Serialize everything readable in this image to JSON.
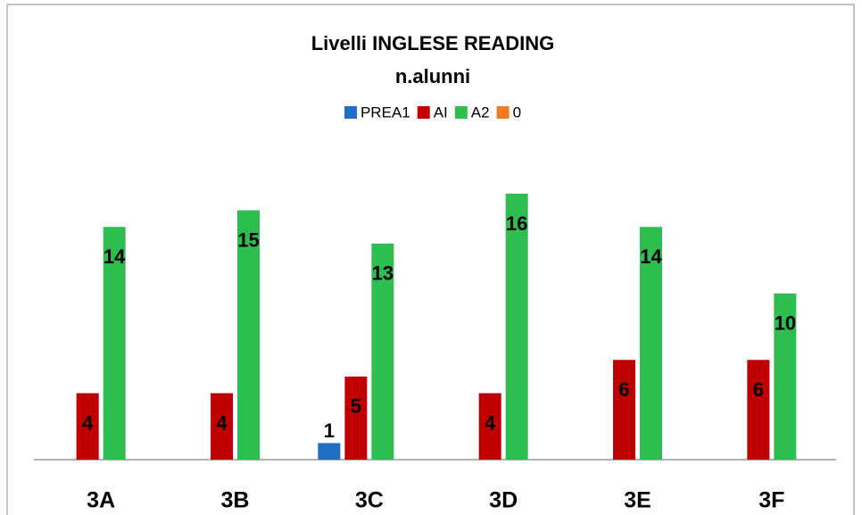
{
  "chart_data": {
    "type": "bar",
    "title": "Livelli INGLESE READING",
    "subtitle": "n.alunni",
    "categories": [
      "3A",
      "3B",
      "3C",
      "3D",
      "3E",
      "3F"
    ],
    "series": [
      {
        "name": "PREA1",
        "color": "#1f6fc5",
        "values": [
          null,
          null,
          1,
          null,
          null,
          null
        ]
      },
      {
        "name": "AI",
        "color": "#c00000",
        "values": [
          4,
          4,
          5,
          4,
          6,
          6
        ]
      },
      {
        "name": "A2",
        "color": "#2ebd4f",
        "values": [
          14,
          15,
          13,
          16,
          14,
          10
        ]
      },
      {
        "name": "0",
        "color": "#f07c1c",
        "values": [
          null,
          null,
          null,
          null,
          null,
          null
        ]
      }
    ],
    "ylim": [
      0,
      16
    ],
    "legend": "top"
  }
}
